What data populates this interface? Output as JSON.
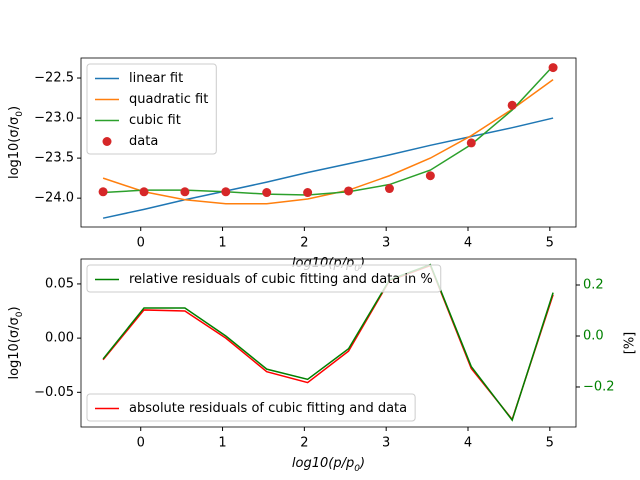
{
  "chart_data": [
    {
      "type": "line",
      "xlim": [
        -0.73,
        5.32
      ],
      "xticks": [
        0,
        1,
        2,
        3,
        4,
        5
      ],
      "ylim": [
        -24.36,
        -22.25
      ],
      "yticks": [
        {
          "value": -24,
          "label": "−24.0"
        },
        {
          "value": -23.5,
          "label": "−23.5"
        },
        {
          "value": -23,
          "label": "−23.0"
        },
        {
          "value": -22.5,
          "label": "−22.5"
        }
      ],
      "xlabel": [
        "log10(p/p",
        "0",
        ")"
      ],
      "ylabel": [
        "log10(σ/σ",
        "0",
        ")"
      ],
      "legend": "upper left",
      "x": [
        -0.46,
        0.04,
        0.54,
        1.04,
        1.54,
        2.04,
        2.54,
        3.04,
        3.54,
        4.04,
        4.54,
        5.04
      ],
      "series": [
        {
          "name": "linear fit",
          "color": "#1f77b4",
          "values": [
            -24.25,
            -24.14,
            -24.02,
            -23.91,
            -23.8,
            -23.68,
            -23.57,
            -23.46,
            -23.34,
            -23.23,
            -23.12,
            -23.0
          ]
        },
        {
          "name": "quadratic fit",
          "color": "#ff7f0e",
          "values": [
            -23.75,
            -23.92,
            -24.02,
            -24.07,
            -24.07,
            -24.01,
            -23.9,
            -23.72,
            -23.5,
            -23.22,
            -22.89,
            -22.52
          ]
        },
        {
          "name": "cubic fit",
          "color": "#2ca02c",
          "values": [
            -23.93,
            -23.9,
            -23.9,
            -23.92,
            -23.95,
            -23.96,
            -23.92,
            -23.83,
            -23.65,
            -23.33,
            -22.9,
            -22.35
          ]
        },
        {
          "name": "data",
          "color": "#d62728",
          "marker": "o",
          "values": [
            -23.92,
            -23.92,
            -23.92,
            -23.92,
            -23.93,
            -23.93,
            -23.91,
            -23.88,
            -23.72,
            -23.31,
            -22.84,
            -22.37
          ]
        }
      ]
    },
    {
      "type": "line",
      "xlim": [
        -0.73,
        5.32
      ],
      "xticks": [
        0,
        1,
        2,
        3,
        4,
        5
      ],
      "ylim": [
        -0.082,
        0.073
      ],
      "yticks": [
        {
          "value": -0.05,
          "label": "−0.05"
        },
        {
          "value": 0,
          "label": "0.00"
        },
        0.05
      ],
      "y2lim": [
        -0.357,
        0.302
      ],
      "y2ticks": [
        {
          "value": -0.2,
          "label": "−0.2"
        },
        {
          "value": 0,
          "label": "0.0"
        },
        0.2
      ],
      "y2tick_color": "green",
      "xlabel": [
        "log10(p/p",
        "0",
        ")"
      ],
      "ylabel": [
        "log10(σ/σ",
        "0",
        ")"
      ],
      "y2label": "[%]",
      "x": [
        -0.46,
        0.04,
        0.54,
        1.04,
        1.54,
        2.04,
        2.54,
        3.04,
        3.54,
        4.04,
        4.54,
        5.04
      ],
      "series": [
        {
          "name": "absolute residuals of cubic fitting and data",
          "color": "red",
          "legend": "lower left",
          "values": [
            -0.02,
            0.026,
            0.025,
            0.0,
            -0.031,
            -0.041,
            -0.012,
            0.053,
            0.067,
            -0.028,
            -0.075,
            0.04
          ]
        },
        {
          "name": "relative residuals of cubic fitting and data in %",
          "color": "green",
          "axis": "y2",
          "legend": "upper left",
          "values": [
            -0.09,
            0.11,
            0.11,
            0.0,
            -0.13,
            -0.17,
            -0.05,
            0.22,
            0.28,
            -0.12,
            -0.33,
            0.17
          ]
        }
      ]
    }
  ]
}
